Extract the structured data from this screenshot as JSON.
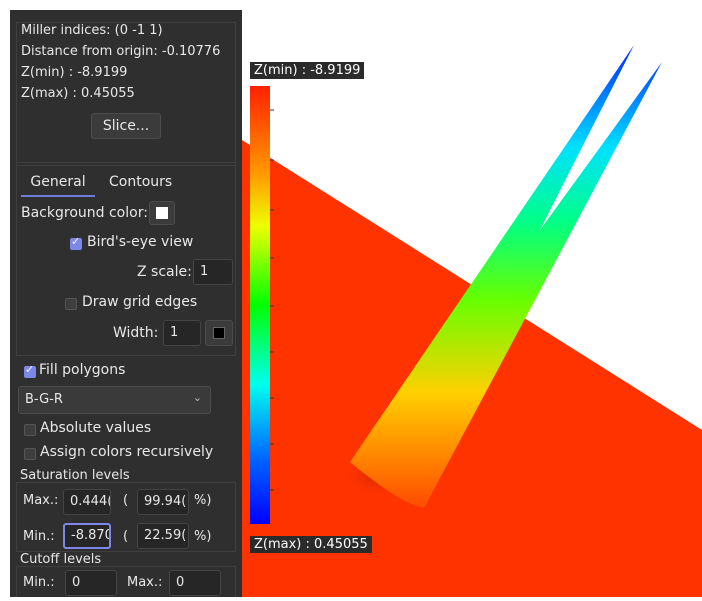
{
  "info": {
    "miller": "Miller indices: (0 -1 1)",
    "distance": "Distance from origin: -0.10776",
    "zmin": "Z(min) : -8.9199",
    "zmax": "Z(max) : 0.45055",
    "slice_button": "Slice..."
  },
  "tabs": [
    "General",
    "Contours"
  ],
  "general": {
    "background_color_label": "Background color:",
    "background_color": "#ffffff",
    "birds_eye_label": "Bird's-eye view",
    "birds_eye_checked": true,
    "z_scale_label": "Z scale:",
    "z_scale_value": "1",
    "draw_grid_label": "Draw grid edges",
    "draw_grid_checked": false,
    "width_label": "Width:",
    "width_value": "1",
    "grid_color": "#000000",
    "fill_polygons_label": "Fill polygons",
    "fill_polygons_checked": true,
    "color_map": "B-G-R",
    "absolute_values_label": "Absolute values",
    "absolute_values_checked": false,
    "assign_recursive_label": "Assign colors recursively",
    "assign_recursive_checked": false
  },
  "saturation": {
    "title": "Saturation levels",
    "max_label": "Max.:",
    "max_value": "0.444(",
    "max_percent": "99.94(",
    "min_label": "Min.:",
    "min_value": "-8.870",
    "min_percent": "22.59(",
    "paren": "(",
    "percent_suffix": "%)"
  },
  "cutoff": {
    "title": "Cutoff levels",
    "min_label": "Min.:",
    "min_value": "0",
    "max_label": "Max.:",
    "max_value": "0"
  },
  "colorbar": {
    "top_label": "Z(min) : -8.9199",
    "bottom_label": "Z(max) : 0.45055"
  },
  "colors": {
    "sidebar_bg": "#2f2f2f",
    "accent": "#7d87e6",
    "surface_red": "#ff3300"
  }
}
